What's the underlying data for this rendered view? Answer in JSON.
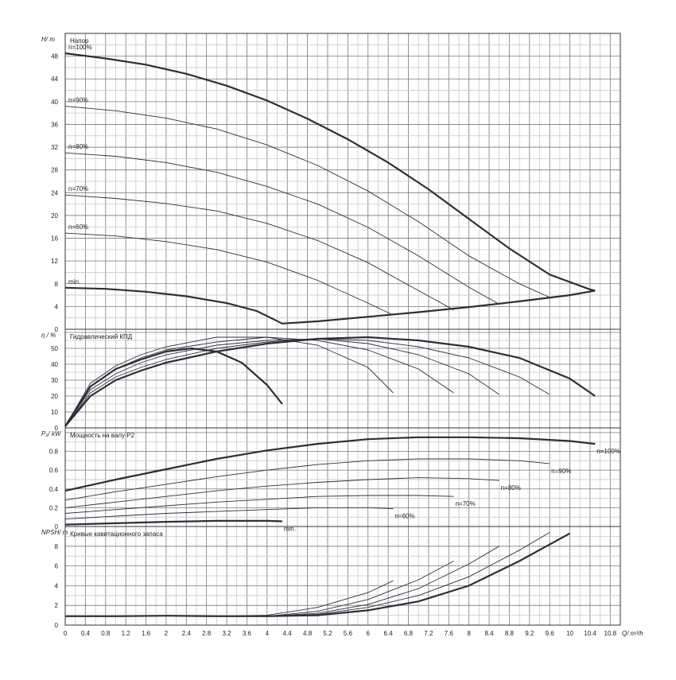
{
  "chart_data": [
    {
      "type": "line",
      "panel": "head",
      "ylabel": "H/ m",
      "title": "Напор",
      "xlim": [
        0,
        11
      ],
      "ylim": [
        0,
        52
      ],
      "yticks": [
        0,
        4,
        8,
        12,
        16,
        20,
        24,
        28,
        32,
        36,
        40,
        44,
        48
      ],
      "series": [
        {
          "name": "n=100%",
          "x": [
            0,
            0.8,
            1.6,
            2.4,
            3.2,
            4.0,
            4.8,
            5.6,
            6.4,
            7.2,
            8.0,
            8.8,
            9.6,
            10.4,
            10.5
          ],
          "y": [
            48.5,
            47.6,
            46.5,
            44.9,
            42.8,
            40.2,
            37.0,
            33.4,
            29.3,
            24.6,
            19.4,
            14.2,
            9.6,
            7.0,
            6.8
          ]
        },
        {
          "name": "n=90%",
          "x": [
            0,
            1,
            2,
            3,
            4,
            5,
            6,
            7,
            8,
            9,
            9.6
          ],
          "y": [
            39.2,
            38.4,
            37.1,
            35.2,
            32.4,
            28.8,
            24.3,
            18.9,
            12.9,
            8.0,
            5.6
          ]
        },
        {
          "name": "n=80%",
          "x": [
            0,
            1,
            2,
            3,
            4,
            5,
            6,
            7,
            8,
            8.6
          ],
          "y": [
            31.0,
            30.4,
            29.3,
            27.6,
            25.1,
            22.0,
            17.9,
            12.9,
            7.4,
            4.4
          ]
        },
        {
          "name": "n=70%",
          "x": [
            0,
            1,
            2,
            3,
            4,
            5,
            6,
            7,
            7.7
          ],
          "y": [
            23.6,
            23.0,
            22.1,
            20.8,
            18.6,
            15.6,
            11.7,
            6.8,
            3.4
          ]
        },
        {
          "name": "n=60%",
          "x": [
            0,
            1,
            2,
            3,
            4,
            5,
            6,
            6.5
          ],
          "y": [
            16.9,
            16.4,
            15.4,
            14.0,
            11.8,
            8.6,
            4.6,
            2.5
          ]
        },
        {
          "name": "min.",
          "x": [
            0,
            0.8,
            1.6,
            2.4,
            3.2,
            3.8,
            4.3,
            5.0,
            6.0,
            7.0,
            8.0,
            9.0,
            10.0,
            10.5
          ],
          "y": [
            7.3,
            7.1,
            6.6,
            5.8,
            4.6,
            3.2,
            1.0,
            1.4,
            2.2,
            3.0,
            3.9,
            4.9,
            6.0,
            6.8
          ]
        }
      ]
    },
    {
      "type": "line",
      "panel": "efficiency",
      "ylabel": "η / %",
      "title": "Гидравлический КПД",
      "xlim": [
        0,
        11
      ],
      "ylim": [
        0,
        62
      ],
      "yticks": [
        0,
        10,
        20,
        30,
        40,
        50
      ],
      "series": [
        {
          "name": "n=100%",
          "x": [
            0,
            0.5,
            1,
            1.5,
            2,
            3,
            4,
            5,
            6,
            7,
            8,
            9,
            10,
            10.5
          ],
          "y": [
            1,
            20,
            30,
            36,
            41,
            48,
            53,
            56,
            57,
            55,
            51,
            44,
            31,
            20
          ]
        },
        {
          "name": "n=90%",
          "x": [
            0,
            0.5,
            1,
            1.5,
            2,
            3,
            4,
            5,
            6,
            7,
            8,
            9,
            9.6
          ],
          "y": [
            1,
            22,
            32,
            38,
            43,
            50,
            54,
            56,
            55,
            51,
            44,
            32,
            21
          ]
        },
        {
          "name": "n=80%",
          "x": [
            0,
            0.5,
            1,
            1.5,
            2,
            3,
            4,
            5,
            6,
            7,
            8,
            8.6
          ],
          "y": [
            1,
            24,
            34,
            41,
            46,
            52,
            55,
            56,
            53,
            46,
            34,
            21
          ]
        },
        {
          "name": "n=70%",
          "x": [
            0,
            0.5,
            1,
            1.5,
            2,
            3,
            4,
            5,
            6,
            7,
            7.7
          ],
          "y": [
            1,
            26,
            37,
            44,
            49,
            54,
            57,
            55,
            49,
            37,
            22
          ]
        },
        {
          "name": "n=60%",
          "x": [
            0,
            0.5,
            1,
            1.5,
            2,
            3,
            4,
            5,
            6,
            6.5
          ],
          "y": [
            1,
            28,
            39,
            46,
            51,
            57,
            57,
            52,
            38,
            22
          ]
        },
        {
          "name": "min.",
          "x": [
            0,
            0.5,
            1,
            1.5,
            2,
            2.5,
            3,
            3.5,
            4,
            4.3
          ],
          "y": [
            1,
            26,
            37,
            43,
            48,
            50,
            48,
            41,
            27,
            15
          ]
        }
      ]
    },
    {
      "type": "line",
      "panel": "power",
      "ylabel": "P₂/ kW",
      "title": "Мощность на валу P2",
      "xlim": [
        0,
        11
      ],
      "ylim": [
        0,
        1.05
      ],
      "yticks": [
        0,
        0.2,
        0.4,
        0.6,
        0.8
      ],
      "series": [
        {
          "name": "n=100%",
          "x": [
            0,
            1,
            2,
            3,
            4,
            5,
            6,
            7,
            8,
            9,
            10,
            10.5
          ],
          "y": [
            0.38,
            0.5,
            0.61,
            0.72,
            0.81,
            0.88,
            0.93,
            0.95,
            0.95,
            0.94,
            0.91,
            0.88
          ]
        },
        {
          "name": "n=90%",
          "x": [
            0,
            1,
            2,
            3,
            4,
            5,
            6,
            7,
            8,
            9,
            9.6
          ],
          "y": [
            0.28,
            0.37,
            0.45,
            0.53,
            0.6,
            0.66,
            0.7,
            0.72,
            0.72,
            0.7,
            0.67
          ]
        },
        {
          "name": "n=80%",
          "x": [
            0,
            1,
            2,
            3,
            4,
            5,
            6,
            7,
            8,
            8.6
          ],
          "y": [
            0.2,
            0.26,
            0.32,
            0.38,
            0.43,
            0.47,
            0.5,
            0.52,
            0.51,
            0.49
          ]
        },
        {
          "name": "n=70%",
          "x": [
            0,
            1,
            2,
            3,
            4,
            5,
            6,
            7,
            7.7
          ],
          "y": [
            0.14,
            0.18,
            0.22,
            0.26,
            0.29,
            0.32,
            0.33,
            0.33,
            0.32
          ]
        },
        {
          "name": "n=60%",
          "x": [
            0,
            1,
            2,
            3,
            4,
            5,
            6,
            6.5
          ],
          "y": [
            0.08,
            0.11,
            0.14,
            0.16,
            0.18,
            0.2,
            0.2,
            0.19
          ]
        },
        {
          "name": "min.",
          "x": [
            0,
            1,
            2,
            3,
            4,
            4.3
          ],
          "y": [
            0.02,
            0.035,
            0.05,
            0.06,
            0.06,
            0.055
          ]
        }
      ],
      "labels": [
        "n=100%",
        "n=90%",
        "n=80%",
        "n=70%",
        "n=60%",
        "min."
      ]
    },
    {
      "type": "line",
      "panel": "npsh",
      "ylabel": "NPSH/ m",
      "xlabel": "Q/ m³/h",
      "title": "Кривые кавитационного запаса",
      "xlim": [
        0,
        11
      ],
      "ylim": [
        0,
        10
      ],
      "yticks": [
        0,
        2,
        4,
        6,
        8
      ],
      "xticks": [
        "0",
        "0.4",
        "0.8",
        "1.2",
        "1.6",
        "2",
        "2.4",
        "2.8",
        "3.2",
        "3.6",
        "4",
        "4.4",
        "4.8",
        "5.2",
        "5.6",
        "6",
        "6.4",
        "6.8",
        "7.2",
        "7.6",
        "8",
        "8.4",
        "8.8",
        "9.2",
        "9.6",
        "10",
        "10.4",
        "10.8"
      ],
      "series": [
        {
          "name": "n=100%",
          "x": [
            0,
            1,
            2,
            3,
            4,
            5,
            6,
            7,
            8,
            9,
            10
          ],
          "y": [
            0.9,
            0.9,
            0.95,
            0.9,
            0.9,
            1.0,
            1.5,
            2.4,
            4.0,
            6.5,
            9.3
          ]
        },
        {
          "name": "n=90%",
          "x": [
            0,
            1,
            2,
            3,
            4,
            5,
            6,
            7,
            8,
            9,
            9.6
          ],
          "y": [
            0.9,
            0.9,
            0.95,
            0.9,
            0.9,
            1.1,
            1.8,
            3.0,
            4.9,
            7.6,
            9.4
          ]
        },
        {
          "name": "n=80%",
          "x": [
            0,
            1,
            2,
            3,
            4,
            5,
            6,
            7,
            8,
            8.6
          ],
          "y": [
            0.9,
            0.9,
            0.95,
            0.9,
            0.9,
            1.2,
            2.1,
            3.7,
            6.2,
            8.0
          ]
        },
        {
          "name": "n=70%",
          "x": [
            0,
            1,
            2,
            3,
            4,
            5,
            6,
            7,
            7.7
          ],
          "y": [
            0.9,
            0.9,
            0.95,
            0.9,
            0.9,
            1.4,
            2.6,
            4.6,
            6.5
          ]
        },
        {
          "name": "n=60%",
          "x": [
            0,
            1,
            2,
            3,
            4,
            5,
            6,
            6.5
          ],
          "y": [
            0.9,
            0.9,
            0.95,
            0.9,
            1.0,
            1.8,
            3.3,
            4.5
          ]
        }
      ]
    }
  ]
}
